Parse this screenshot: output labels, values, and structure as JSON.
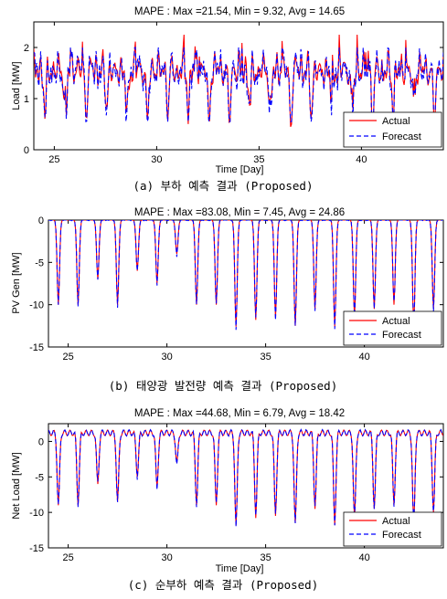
{
  "chart_data": [
    {
      "type": "line",
      "title": "MAPE : Max =21.54, Min = 9.32, Avg = 14.65",
      "xlabel": "Time [Day]",
      "ylabel": "Load [MW]",
      "caption": "(a) 부하 예측 결과 (Proposed)",
      "xlim": [
        24,
        44
      ],
      "ylim": [
        0,
        2.5
      ],
      "xticks": [
        25,
        30,
        35,
        40
      ],
      "yticks": [
        0,
        1,
        2
      ],
      "legend_position": "bottom-right",
      "grid": false,
      "pattern": "load",
      "series": [
        {
          "name": "Actual",
          "color": "#ff0000",
          "dash": "solid"
        },
        {
          "name": "Forecast",
          "color": "#0000ff",
          "dash": "dashed"
        }
      ]
    },
    {
      "type": "line",
      "title": "MAPE : Max =83.08, Min = 7.45, Avg = 24.86",
      "xlabel": "Time [Day]",
      "ylabel": "PV Gen [MW]",
      "caption": "(b) 태양광 발전량 예측 결과 (Proposed)",
      "xlim": [
        24,
        44
      ],
      "ylim": [
        -15,
        0
      ],
      "xticks": [
        25,
        30,
        35,
        40
      ],
      "yticks": [
        -15,
        -10,
        -5,
        0
      ],
      "legend_position": "bottom-right",
      "grid": false,
      "pattern": "pv",
      "daily_minimum": [
        -10,
        -10,
        -7,
        -10,
        -6,
        -7.5,
        -4,
        -10,
        -10,
        -12.6,
        -11.8,
        -11.5,
        -12.5,
        -10.5,
        -12.6,
        -11.5,
        -10.5,
        -10,
        -12.5,
        -10.5
      ],
      "series": [
        {
          "name": "Actual",
          "color": "#ff0000",
          "dash": "solid"
        },
        {
          "name": "Forecast",
          "color": "#0000ff",
          "dash": "dashed"
        }
      ]
    },
    {
      "type": "line",
      "title": "MAPE : Max =44.68, Min = 6.79, Avg = 18.42",
      "xlabel": "Time [Day]",
      "ylabel": "Net Load [MW]",
      "caption": "(c) 순부하 예측 결과 (Proposed)",
      "xlim": [
        24,
        44
      ],
      "ylim": [
        -15,
        2.5
      ],
      "xticks": [
        25,
        30,
        35,
        40
      ],
      "yticks": [
        -15,
        -10,
        -5,
        0
      ],
      "legend_position": "bottom-right",
      "grid": false,
      "pattern": "net",
      "daily_minimum": [
        -9,
        -9,
        -6,
        -8.5,
        -5,
        -6.5,
        -3,
        -9,
        -9,
        -11.8,
        -10.8,
        -10.5,
        -11.5,
        -9.5,
        -11.8,
        -10.8,
        -9.5,
        -9,
        -11.5,
        -10
      ],
      "series": [
        {
          "name": "Actual",
          "color": "#ff0000",
          "dash": "solid"
        },
        {
          "name": "Forecast",
          "color": "#0000ff",
          "dash": "dashed"
        }
      ]
    }
  ]
}
